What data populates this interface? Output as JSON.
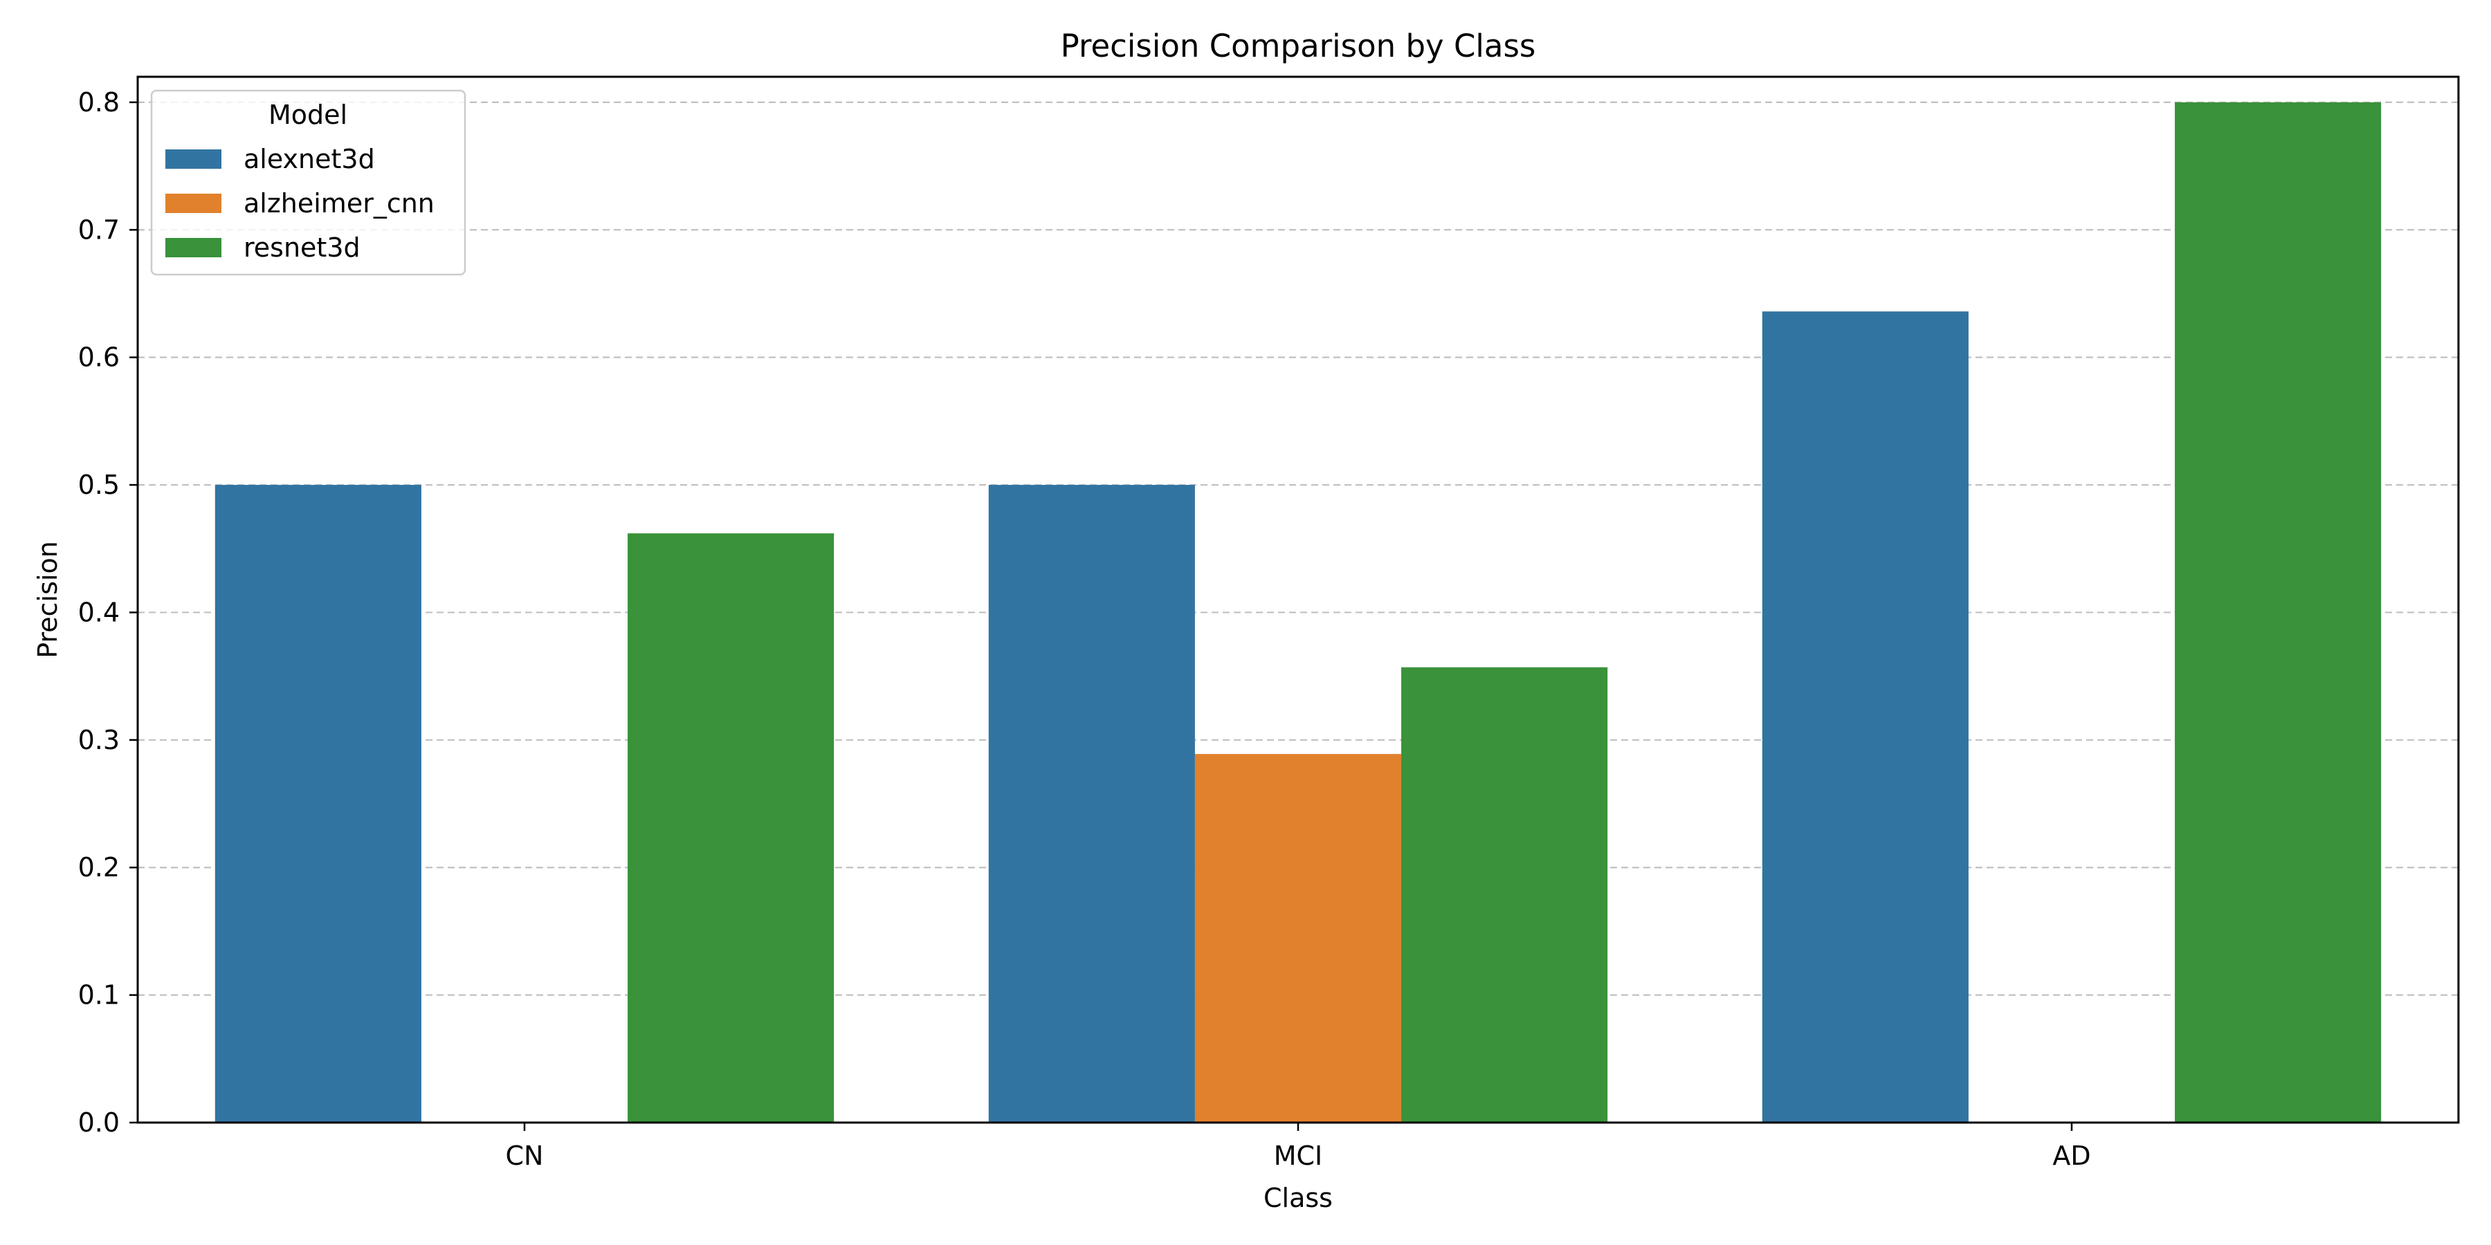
{
  "chart_data": {
    "type": "bar",
    "title": "Precision Comparison by Class",
    "xlabel": "Class",
    "ylabel": "Precision",
    "categories": [
      "CN",
      "MCI",
      "AD"
    ],
    "ylim": [
      0,
      0.82
    ],
    "yticks": [
      0.0,
      0.1,
      0.2,
      0.3,
      0.4,
      0.5,
      0.6,
      0.7,
      0.8
    ],
    "ytick_labels": [
      "0.0",
      "0.1",
      "0.2",
      "0.3",
      "0.4",
      "0.5",
      "0.6",
      "0.7",
      "0.8"
    ],
    "grid": "y-dashed",
    "legend": {
      "title": "Model",
      "placement": "top-left"
    },
    "series": [
      {
        "name": "alexnet3d",
        "color": "#3274a1",
        "values": [
          0.5,
          0.5,
          0.636
        ]
      },
      {
        "name": "alzheimer_cnn",
        "color": "#e1812c",
        "values": [
          0.0,
          0.289,
          0.0
        ]
      },
      {
        "name": "resnet3d",
        "color": "#3a923a",
        "values": [
          0.462,
          0.357,
          0.8
        ]
      }
    ]
  }
}
